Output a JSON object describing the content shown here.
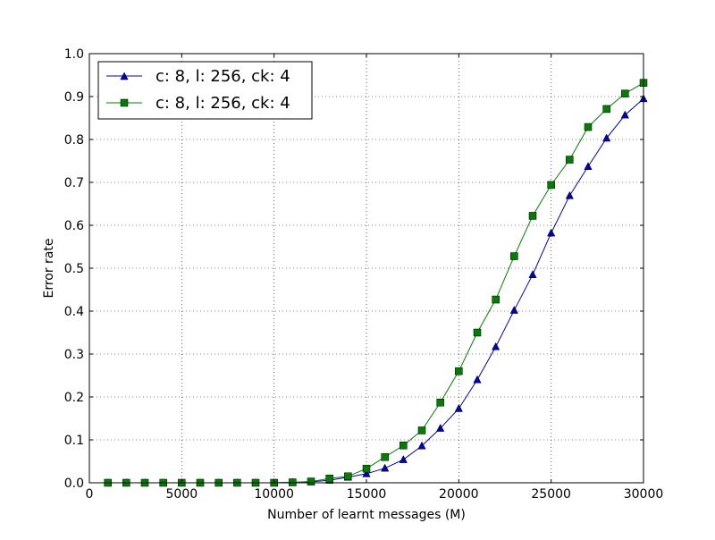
{
  "chart_data": {
    "type": "line",
    "title": "",
    "xlabel": "Number of learnt messages (M)",
    "ylabel": "Error rate",
    "xlim": [
      0,
      30000
    ],
    "ylim": [
      0.0,
      1.0
    ],
    "x_ticks": [
      0,
      5000,
      10000,
      15000,
      20000,
      25000,
      30000
    ],
    "x_tick_labels": [
      "0",
      "5000",
      "10000",
      "15000",
      "20000",
      "25000",
      "30000"
    ],
    "y_ticks": [
      0.0,
      0.1,
      0.2,
      0.3,
      0.4,
      0.5,
      0.6,
      0.7,
      0.8,
      0.9,
      1.0
    ],
    "y_tick_labels": [
      "0.0",
      "0.1",
      "0.2",
      "0.3",
      "0.4",
      "0.5",
      "0.6",
      "0.7",
      "0.8",
      "0.9",
      "1.0"
    ],
    "grid": true,
    "legend_position": "top-left",
    "x": [
      1000,
      2000,
      3000,
      4000,
      5000,
      6000,
      7000,
      8000,
      9000,
      10000,
      11000,
      12000,
      13000,
      14000,
      15000,
      16000,
      17000,
      18000,
      19000,
      20000,
      21000,
      22000,
      23000,
      24000,
      25000,
      26000,
      27000,
      28000,
      29000,
      30000
    ],
    "series": [
      {
        "name": "c: 8, l: 256, ck: 4",
        "color": "#0000bf",
        "marker": "triangle",
        "values": [
          0.0,
          0.0,
          0.0,
          0.0,
          0.0,
          0.0,
          0.0,
          0.0,
          0.0,
          0.0,
          0.001,
          0.002,
          0.006,
          0.013,
          0.021,
          0.034,
          0.054,
          0.086,
          0.127,
          0.173,
          0.24,
          0.317,
          0.402,
          0.485,
          0.582,
          0.669,
          0.737,
          0.803,
          0.857,
          0.895
        ]
      },
      {
        "name": "c: 8, l: 256, ck: 4",
        "color": "#007f00",
        "marker": "square",
        "values": [
          0.0,
          0.0,
          0.0,
          0.0,
          0.0,
          0.0,
          0.0,
          0.0,
          0.0,
          0.0,
          0.001,
          0.003,
          0.01,
          0.015,
          0.033,
          0.06,
          0.087,
          0.122,
          0.187,
          0.26,
          0.35,
          0.427,
          0.528,
          0.622,
          0.694,
          0.753,
          0.829,
          0.871,
          0.907,
          0.932
        ]
      }
    ]
  }
}
